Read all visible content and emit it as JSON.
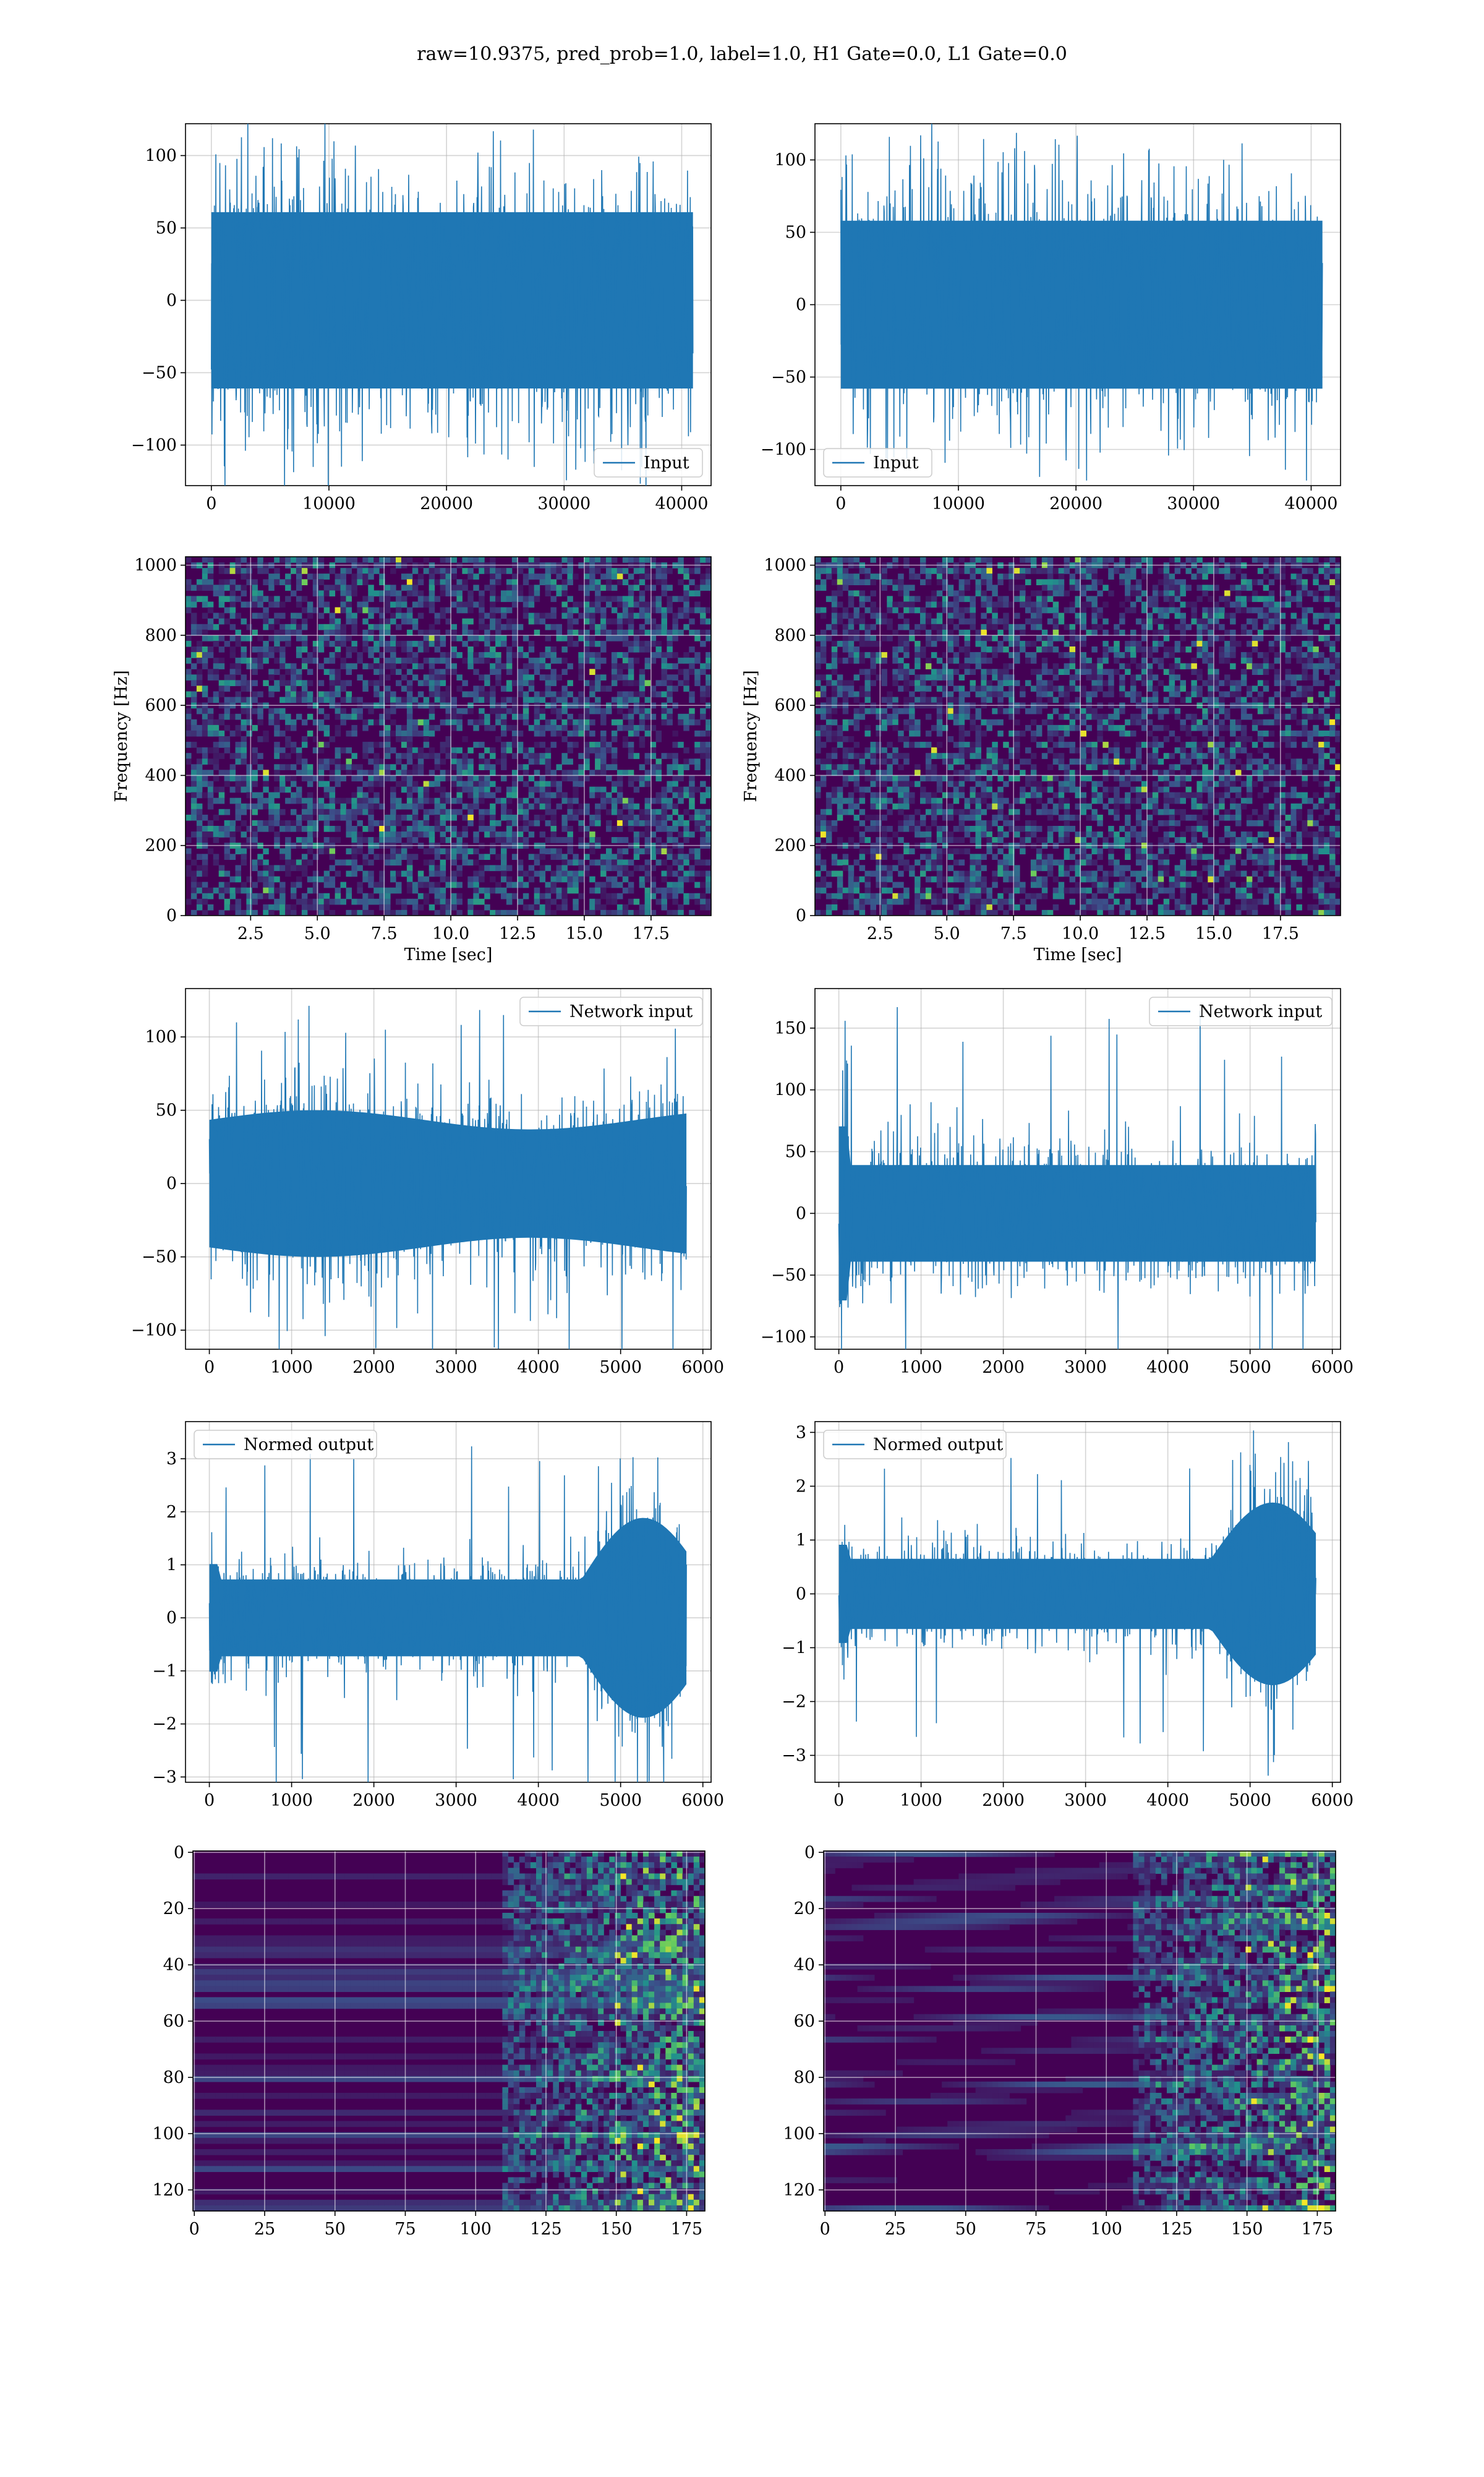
{
  "figure": {
    "title": "raw=10.9375, pred_prob=1.0, label=1.0, H1 Gate=0.0, L1 Gate=0.0"
  },
  "colors": {
    "line": "#1f77b4",
    "grid": "#b0b0b0",
    "viridis_dark": "#440154",
    "viridis_mid": "#21918c",
    "viridis_bright": "#fde725"
  },
  "chart_data": [
    {
      "id": "h1-input",
      "type": "line",
      "series": [
        {
          "name": "Input",
          "amplitude": 42,
          "peak": 120
        }
      ],
      "xlim": [
        -2200,
        42500
      ],
      "ylim": [
        -128,
        122
      ],
      "xticks": [
        0,
        10000,
        20000,
        30000,
        40000
      ],
      "xtick_labels": [
        "0",
        "10000",
        "20000",
        "30000",
        "40000"
      ],
      "yticks": [
        -100,
        -50,
        0,
        50,
        100
      ],
      "ytick_labels": [
        "−100",
        "−50",
        "0",
        "50",
        "100"
      ],
      "legend": "lower right",
      "grid": true
    },
    {
      "id": "l1-input",
      "type": "line",
      "series": [
        {
          "name": "Input",
          "amplitude": 40,
          "peak": 120
        }
      ],
      "xlim": [
        -2200,
        42500
      ],
      "ylim": [
        -125,
        125
      ],
      "xticks": [
        0,
        10000,
        20000,
        30000,
        40000
      ],
      "xtick_labels": [
        "0",
        "10000",
        "20000",
        "30000",
        "40000"
      ],
      "yticks": [
        -100,
        -50,
        0,
        50,
        100
      ],
      "ytick_labels": [
        "−100",
        "−50",
        "0",
        "50",
        "100"
      ],
      "legend": "lower left",
      "grid": true
    },
    {
      "id": "h1-spectrogram",
      "type": "heatmap",
      "xlim": [
        0.06,
        19.75
      ],
      "ylim": [
        0,
        1024
      ],
      "xticks": [
        2.5,
        5.0,
        7.5,
        10.0,
        12.5,
        15.0,
        17.5
      ],
      "xtick_labels": [
        "2.5",
        "5.0",
        "7.5",
        "10.0",
        "12.5",
        "15.0",
        "17.5"
      ],
      "yticks": [
        0,
        200,
        400,
        600,
        800,
        1000
      ],
      "ytick_labels": [
        "0",
        "200",
        "400",
        "600",
        "800",
        "1000"
      ],
      "xlabel": "Time [sec]",
      "ylabel": "Frequency [Hz]",
      "colormap": "viridis",
      "grid": true
    },
    {
      "id": "l1-spectrogram",
      "type": "heatmap",
      "xlim": [
        0.06,
        19.75
      ],
      "ylim": [
        0,
        1024
      ],
      "xticks": [
        2.5,
        5.0,
        7.5,
        10.0,
        12.5,
        15.0,
        17.5
      ],
      "xtick_labels": [
        "2.5",
        "5.0",
        "7.5",
        "10.0",
        "12.5",
        "15.0",
        "17.5"
      ],
      "yticks": [
        0,
        200,
        400,
        600,
        800,
        1000
      ],
      "ytick_labels": [
        "0",
        "200",
        "400",
        "600",
        "800",
        "1000"
      ],
      "xlabel": "Time [sec]",
      "ylabel": "Frequency [Hz]",
      "colormap": "viridis",
      "grid": true
    },
    {
      "id": "h1-network-input",
      "type": "line",
      "series": [
        {
          "name": "Network input",
          "amplitude": 30,
          "peak": 123
        }
      ],
      "xlim": [
        -290,
        6100
      ],
      "ylim": [
        -113,
        133
      ],
      "xticks": [
        0,
        1000,
        2000,
        3000,
        4000,
        5000,
        6000
      ],
      "xtick_labels": [
        "0",
        "1000",
        "2000",
        "3000",
        "4000",
        "5000",
        "6000"
      ],
      "yticks": [
        -100,
        -50,
        0,
        50,
        100
      ],
      "ytick_labels": [
        "−100",
        "−50",
        "0",
        "50",
        "100"
      ],
      "legend": "upper right",
      "grid": true
    },
    {
      "id": "l1-network-input",
      "type": "line",
      "series": [
        {
          "name": "Network input",
          "amplitude": 27,
          "peak": 170
        }
      ],
      "xlim": [
        -290,
        6100
      ],
      "ylim": [
        -110,
        182
      ],
      "xticks": [
        0,
        1000,
        2000,
        3000,
        4000,
        5000,
        6000
      ],
      "xtick_labels": [
        "0",
        "1000",
        "2000",
        "3000",
        "4000",
        "5000",
        "6000"
      ],
      "yticks": [
        -100,
        -50,
        0,
        50,
        100,
        150
      ],
      "ytick_labels": [
        "−100",
        "−50",
        "0",
        "50",
        "100",
        "150"
      ],
      "legend": "upper right",
      "grid": true
    },
    {
      "id": "h1-normed-output",
      "type": "line",
      "series": [
        {
          "name": "Normed output",
          "amplitude": 0.5,
          "peak": 3.4
        }
      ],
      "xlim": [
        -290,
        6100
      ],
      "ylim": [
        -3.1,
        3.7
      ],
      "xticks": [
        0,
        1000,
        2000,
        3000,
        4000,
        5000,
        6000
      ],
      "xtick_labels": [
        "0",
        "1000",
        "2000",
        "3000",
        "4000",
        "5000",
        "6000"
      ],
      "yticks": [
        -3,
        -2,
        -1,
        0,
        1,
        2,
        3
      ],
      "ytick_labels": [
        "−3",
        "−2",
        "−1",
        "0",
        "1",
        "2",
        "3"
      ],
      "legend": "upper left",
      "grid": true
    },
    {
      "id": "l1-normed-output",
      "type": "line",
      "series": [
        {
          "name": "Normed output",
          "amplitude": 0.45,
          "peak": 3.0
        }
      ],
      "xlim": [
        -290,
        6100
      ],
      "ylim": [
        -3.5,
        3.2
      ],
      "xticks": [
        0,
        1000,
        2000,
        3000,
        4000,
        5000,
        6000
      ],
      "xtick_labels": [
        "0",
        "1000",
        "2000",
        "3000",
        "4000",
        "5000",
        "6000"
      ],
      "yticks": [
        -3,
        -2,
        -1,
        0,
        1,
        2,
        3
      ],
      "ytick_labels": [
        "−3",
        "−2",
        "−1",
        "0",
        "1",
        "2",
        "3"
      ],
      "legend": "upper left",
      "grid": true
    },
    {
      "id": "h1-feature-map",
      "type": "heatmap",
      "xlim": [
        -0.5,
        181.5
      ],
      "ylim": [
        127.5,
        -0.5
      ],
      "xticks": [
        0,
        25,
        50,
        75,
        100,
        125,
        150,
        175
      ],
      "xtick_labels": [
        "0",
        "25",
        "50",
        "75",
        "100",
        "125",
        "150",
        "175"
      ],
      "yticks": [
        0,
        20,
        40,
        60,
        80,
        100,
        120
      ],
      "ytick_labels": [
        "0",
        "20",
        "40",
        "60",
        "80",
        "100",
        "120"
      ],
      "colormap": "viridis",
      "grid": true
    },
    {
      "id": "l1-feature-map",
      "type": "heatmap",
      "xlim": [
        -0.5,
        181.5
      ],
      "ylim": [
        127.5,
        -0.5
      ],
      "xticks": [
        0,
        25,
        50,
        75,
        100,
        125,
        150,
        175
      ],
      "xtick_labels": [
        "0",
        "25",
        "50",
        "75",
        "100",
        "125",
        "150",
        "175"
      ],
      "yticks": [
        0,
        20,
        40,
        60,
        80,
        100,
        120
      ],
      "ytick_labels": [
        "0",
        "20",
        "40",
        "60",
        "80",
        "100",
        "120"
      ],
      "colormap": "viridis",
      "grid": true
    }
  ]
}
